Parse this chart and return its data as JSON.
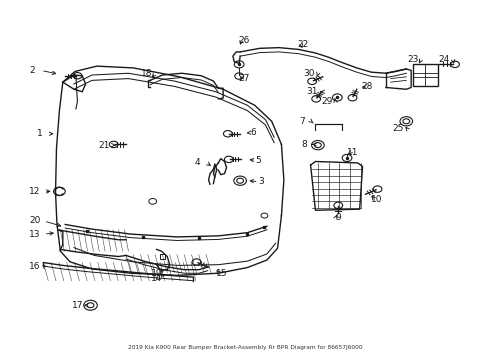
{
  "title": "2019 Kia K900 Rear Bumper Bracket-Assembly Rr BPR Diagram for 86657J6000",
  "background_color": "#ffffff",
  "fig_width": 4.9,
  "fig_height": 3.6,
  "dpi": 100,
  "gray": "#1a1a1a",
  "parts": {
    "bumper_top": {
      "x": [
        0.12,
        0.15,
        0.2,
        0.28,
        0.38,
        0.46,
        0.52,
        0.56,
        0.58
      ],
      "y": [
        0.76,
        0.8,
        0.82,
        0.82,
        0.79,
        0.75,
        0.7,
        0.65,
        0.58
      ]
    },
    "bumper_left": {
      "x": [
        0.12,
        0.115,
        0.11,
        0.11,
        0.115,
        0.125
      ],
      "y": [
        0.76,
        0.68,
        0.58,
        0.47,
        0.38,
        0.3
      ]
    },
    "bumper_bottom": {
      "x": [
        0.125,
        0.14,
        0.19,
        0.27,
        0.36,
        0.44,
        0.5,
        0.54,
        0.565,
        0.58
      ],
      "y": [
        0.3,
        0.27,
        0.25,
        0.24,
        0.235,
        0.24,
        0.255,
        0.275,
        0.31,
        0.4
      ]
    },
    "bumper_right": {
      "x": [
        0.58,
        0.585,
        0.58
      ],
      "y": [
        0.58,
        0.5,
        0.4
      ]
    }
  }
}
